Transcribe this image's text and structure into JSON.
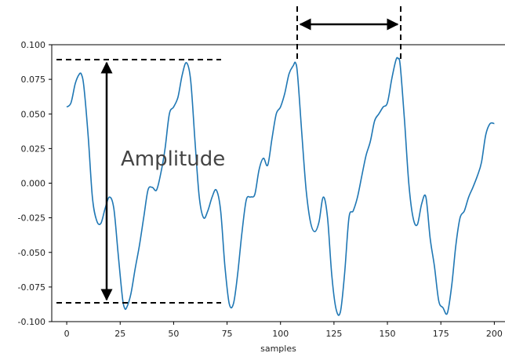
{
  "chart_data": {
    "type": "line",
    "title": "",
    "xlabel": "samples",
    "ylabel": "",
    "xlim": [
      -7,
      205
    ],
    "ylim": [
      -0.1,
      0.1
    ],
    "x_ticks": [
      0,
      25,
      50,
      75,
      100,
      125,
      150,
      175,
      200
    ],
    "y_ticks": [
      -0.1,
      -0.075,
      -0.05,
      -0.025,
      0.0,
      0.025,
      0.05,
      0.075,
      0.1
    ],
    "x_tick_labels": [
      "0",
      "25",
      "50",
      "75",
      "100",
      "125",
      "150",
      "175",
      "200"
    ],
    "y_tick_labels": [
      "-0.100",
      "-0.075",
      "-0.050",
      "-0.025",
      "0.000",
      "0.025",
      "0.050",
      "0.075",
      "0.100"
    ],
    "grid": false,
    "series_color": "#1f77b4",
    "series": [
      {
        "x": [
          0,
          2,
          4,
          6,
          7,
          8,
          10,
          12,
          14,
          16,
          18,
          20,
          22,
          24,
          26,
          27,
          28,
          30,
          32,
          34,
          36,
          38,
          40,
          42,
          44,
          46,
          48,
          50,
          52,
          54,
          56,
          58,
          60,
          62,
          64,
          66,
          68,
          70,
          72,
          74,
          76,
          78,
          80,
          82,
          84,
          86,
          88,
          90,
          92,
          94,
          96,
          98,
          100,
          102,
          104,
          106,
          107,
          108,
          110,
          112,
          114,
          116,
          118,
          120,
          122,
          124,
          126,
          128,
          130,
          132,
          134,
          136,
          138,
          140,
          142,
          144,
          146,
          148,
          150,
          152,
          154,
          155,
          156,
          158,
          160,
          162,
          164,
          166,
          168,
          170,
          172,
          174,
          176,
          178,
          180,
          182,
          184,
          186,
          188,
          190,
          192,
          194,
          196,
          198,
          200
        ],
        "values": [
          0.055,
          0.058,
          0.072,
          0.079,
          0.078,
          0.07,
          0.035,
          -0.01,
          -0.027,
          -0.029,
          -0.018,
          -0.01,
          -0.018,
          -0.05,
          -0.082,
          -0.09,
          -0.09,
          -0.08,
          -0.062,
          -0.045,
          -0.025,
          -0.005,
          -0.003,
          -0.005,
          0.007,
          0.025,
          0.05,
          0.055,
          0.062,
          0.078,
          0.087,
          0.074,
          0.03,
          -0.01,
          -0.025,
          -0.02,
          -0.01,
          -0.005,
          -0.02,
          -0.06,
          -0.087,
          -0.087,
          -0.065,
          -0.035,
          -0.012,
          -0.01,
          -0.008,
          0.01,
          0.018,
          0.013,
          0.032,
          0.05,
          0.055,
          0.065,
          0.079,
          0.085,
          0.087,
          0.078,
          0.035,
          -0.005,
          -0.028,
          -0.035,
          -0.028,
          -0.01,
          -0.025,
          -0.067,
          -0.091,
          -0.093,
          -0.065,
          -0.025,
          -0.02,
          -0.01,
          0.005,
          0.02,
          0.03,
          0.045,
          0.05,
          0.055,
          0.058,
          0.075,
          0.089,
          0.09,
          0.085,
          0.045,
          0.0,
          -0.025,
          -0.03,
          -0.015,
          -0.01,
          -0.04,
          -0.06,
          -0.085,
          -0.09,
          -0.094,
          -0.075,
          -0.045,
          -0.025,
          -0.02,
          -0.01,
          -0.003,
          0.005,
          0.015,
          0.035,
          0.043,
          0.043
        ]
      }
    ],
    "annotations": {
      "amplitude_label": "Amplitude"
    }
  }
}
